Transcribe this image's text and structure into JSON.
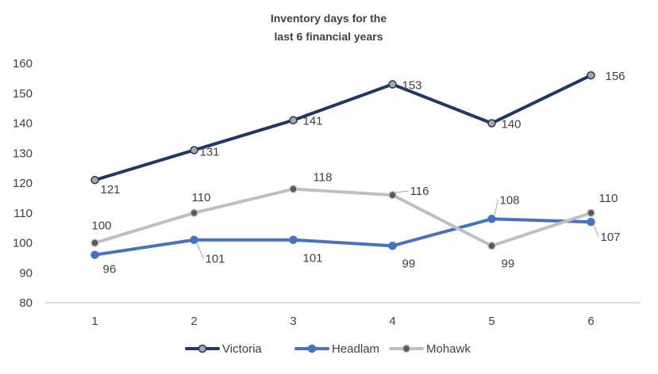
{
  "chart_data": {
    "type": "line",
    "title": "Inventory days for the last 6 financial years",
    "title_lines": [
      "Inventory days for the",
      "last 6 financial years"
    ],
    "x": [
      1,
      2,
      3,
      4,
      5,
      6
    ],
    "xlabel": "",
    "ylabel": "",
    "ylim": [
      80,
      160
    ],
    "yticks": [
      80,
      90,
      100,
      110,
      120,
      130,
      140,
      150,
      160
    ],
    "grid": false,
    "legend": "bottom",
    "series": [
      {
        "name": "Victoria",
        "values": [
          121,
          131,
          141,
          153,
          140,
          156
        ],
        "labels": [
          "121",
          "131",
          "141",
          "153",
          "140",
          "156"
        ],
        "color": "#1f3864",
        "marker_fill": "#a6a6a6"
      },
      {
        "name": "Headlam",
        "values": [
          96,
          101,
          101,
          99,
          108,
          107
        ],
        "labels": [
          "96",
          "101",
          "101",
          "99",
          "108",
          "107"
        ],
        "color": "#4472c4",
        "marker_fill": "#4472c4"
      },
      {
        "name": "Mohawk",
        "values": [
          100,
          110,
          118,
          116,
          99,
          110
        ],
        "labels": [
          "100",
          "110",
          "118",
          "116",
          "99",
          "110"
        ],
        "color": "#bfbfbf",
        "marker_fill": "#595959"
      }
    ]
  }
}
